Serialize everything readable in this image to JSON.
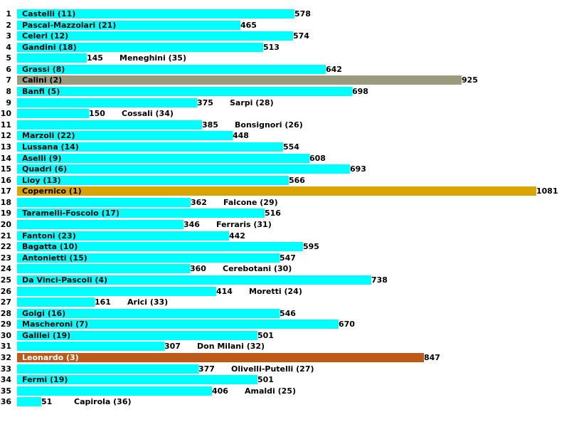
{
  "chart_data": {
    "type": "bar",
    "orientation": "horizontal",
    "title": "",
    "xlabel": "",
    "ylabel": "",
    "xlim": [
      0,
      1081
    ],
    "grid": false,
    "default_color": "#00ffff",
    "rows": [
      {
        "rank": "1",
        "name": "Castelli (11)",
        "value": 578
      },
      {
        "rank": "2",
        "name": "Pascal-Mazzolari (21)",
        "value": 465
      },
      {
        "rank": "3",
        "name": "Celeri (12)",
        "value": 574
      },
      {
        "rank": "4",
        "name": "Gandini (18)",
        "value": 513
      },
      {
        "rank": "5",
        "name": "Meneghini (35)",
        "value": 145
      },
      {
        "rank": "6",
        "name": "Grassi (8)",
        "value": 642
      },
      {
        "rank": "7",
        "name": "Calini (2)",
        "value": 925,
        "color": "#9a9a7c"
      },
      {
        "rank": "8",
        "name": "Banfi (5)",
        "value": 698
      },
      {
        "rank": "9",
        "name": "Sarpi (28)",
        "value": 375
      },
      {
        "rank": "10",
        "name": "Cossali (34)",
        "value": 150
      },
      {
        "rank": "11",
        "name": "Bonsignori (26)",
        "value": 385
      },
      {
        "rank": "12",
        "name": "Marzoli (22)",
        "value": 448
      },
      {
        "rank": "13",
        "name": "Lussana (14)",
        "value": 554
      },
      {
        "rank": "14",
        "name": "Aselli (9)",
        "value": 608
      },
      {
        "rank": "15",
        "name": "Quadri (6)",
        "value": 693
      },
      {
        "rank": "16",
        "name": "Lioy (13)",
        "value": 566
      },
      {
        "rank": "17",
        "name": "Copernico (1)",
        "value": 1081,
        "color": "#daa500"
      },
      {
        "rank": "18",
        "name": "Falcone (29)",
        "value": 362
      },
      {
        "rank": "19",
        "name": "Taramelli-Foscolo (17)",
        "value": 516
      },
      {
        "rank": "20",
        "name": "Ferraris (31)",
        "value": 346
      },
      {
        "rank": "21",
        "name": "Fantoni (23)",
        "value": 442
      },
      {
        "rank": "22",
        "name": "Bagatta (10)",
        "value": 595
      },
      {
        "rank": "23",
        "name": "Antonietti (15)",
        "value": 547
      },
      {
        "rank": "24",
        "name": "Cerebotani (30)",
        "value": 360
      },
      {
        "rank": "25",
        "name": "Da Vinci-Pascoli (4)",
        "value": 738
      },
      {
        "rank": "26",
        "name": "Moretti (24)",
        "value": 414
      },
      {
        "rank": "27",
        "name": "Arici (33)",
        "value": 161
      },
      {
        "rank": "28",
        "name": "Golgi (16)",
        "value": 546
      },
      {
        "rank": "29",
        "name": "Mascheroni (7)",
        "value": 670
      },
      {
        "rank": "30",
        "name": "Galilei (19)",
        "value": 501
      },
      {
        "rank": "31",
        "name": "Don Milani (32)",
        "value": 307
      },
      {
        "rank": "32",
        "name": "Leonardo (3)",
        "value": 847,
        "color": "#bd5a1a",
        "text_color": "#ffffff"
      },
      {
        "rank": "33",
        "name": "Olivelli-Putelli (27)",
        "value": 377
      },
      {
        "rank": "34",
        "name": "Fermi (19)",
        "value": 501
      },
      {
        "rank": "35",
        "name": "Amaldi (25)",
        "value": 406
      },
      {
        "rank": "36",
        "name": "Capirola (36)",
        "value": 51
      }
    ]
  }
}
